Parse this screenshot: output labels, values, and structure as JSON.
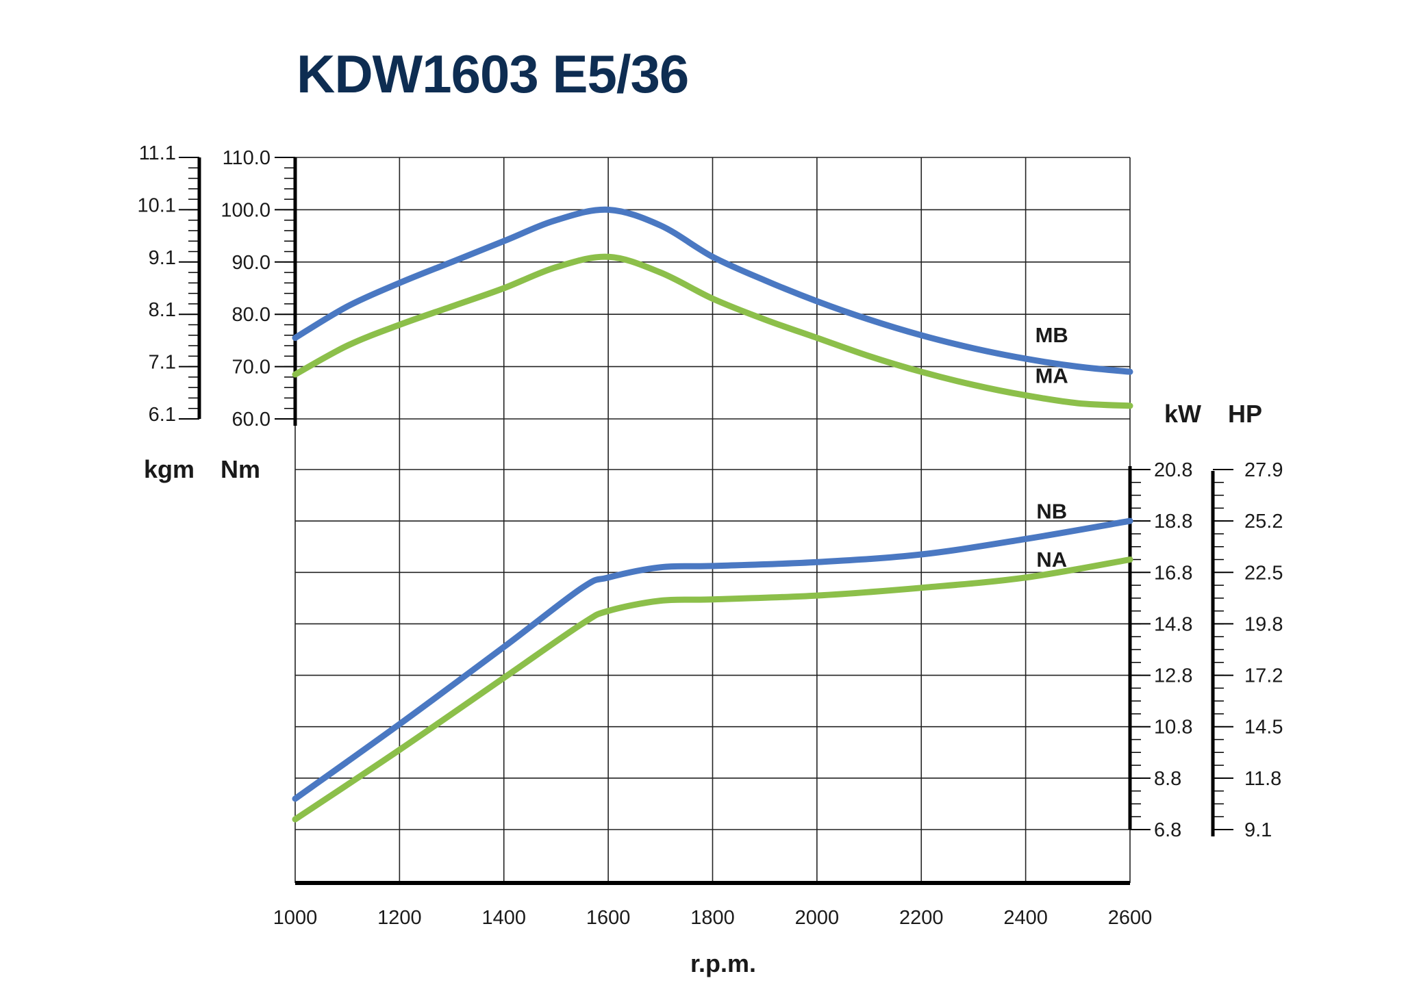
{
  "chart_data": {
    "type": "line",
    "title": "KDW1603 E5/36",
    "xlabel": "r.p.m.",
    "x_ticks": [
      "1000",
      "1200",
      "1400",
      "1600",
      "1800",
      "2000",
      "2200",
      "2400",
      "2600"
    ],
    "xlim": [
      1000,
      2600
    ],
    "grid": true,
    "colors": {
      "title": "#0e2d52",
      "B": "#4a78c2",
      "A": "#8cbf4a",
      "grid": "#222222"
    },
    "torque_panel": {
      "units": {
        "left": "kgm",
        "right": "Nm"
      },
      "kgm_ticks": [
        "11.1",
        "10.1",
        "9.1",
        "8.1",
        "7.1",
        "6.1"
      ],
      "nm_ticks": [
        "110.0",
        "100.0",
        "90.0",
        "80.0",
        "70.0",
        "60.0"
      ],
      "ylim": [
        60,
        110
      ],
      "series": [
        {
          "name": "MB",
          "x": [
            1000,
            1100,
            1200,
            1300,
            1400,
            1500,
            1600,
            1700,
            1800,
            1900,
            2000,
            2100,
            2200,
            2300,
            2400,
            2500,
            2600
          ],
          "values": [
            75.5,
            81.5,
            86,
            90,
            94,
            98,
            100,
            97,
            91,
            86.5,
            82.5,
            79,
            76,
            73.5,
            71.5,
            70,
            69
          ]
        },
        {
          "name": "MA",
          "x": [
            1000,
            1100,
            1200,
            1300,
            1400,
            1500,
            1600,
            1700,
            1800,
            1900,
            2000,
            2100,
            2200,
            2300,
            2400,
            2500,
            2600
          ],
          "values": [
            68.5,
            74,
            78,
            81.5,
            85,
            89,
            91,
            88,
            83,
            79,
            75.5,
            72,
            69,
            66.5,
            64.5,
            63,
            62.5
          ]
        }
      ]
    },
    "power_panel": {
      "units": {
        "left": "kW",
        "right": "HP"
      },
      "kw_ticks": [
        "20.8",
        "18.8",
        "16.8",
        "14.8",
        "12.8",
        "10.8",
        "8.8",
        "6.8"
      ],
      "hp_ticks": [
        "27.9",
        "25.2",
        "22.5",
        "19.8",
        "17.2",
        "14.5",
        "11.8",
        "9.1"
      ],
      "ylim": [
        6.8,
        20.8
      ],
      "series": [
        {
          "name": "NB",
          "x": [
            1000,
            1200,
            1400,
            1550,
            1600,
            1700,
            1800,
            2000,
            2200,
            2400,
            2600
          ],
          "values": [
            8.0,
            10.9,
            13.9,
            16.2,
            16.6,
            17.0,
            17.05,
            17.2,
            17.5,
            18.1,
            18.8
          ]
        },
        {
          "name": "NA",
          "x": [
            1000,
            1200,
            1400,
            1550,
            1600,
            1700,
            1800,
            2000,
            2200,
            2400,
            2600
          ],
          "values": [
            7.2,
            9.9,
            12.7,
            14.8,
            15.3,
            15.7,
            15.75,
            15.9,
            16.2,
            16.6,
            17.3
          ]
        }
      ]
    }
  }
}
